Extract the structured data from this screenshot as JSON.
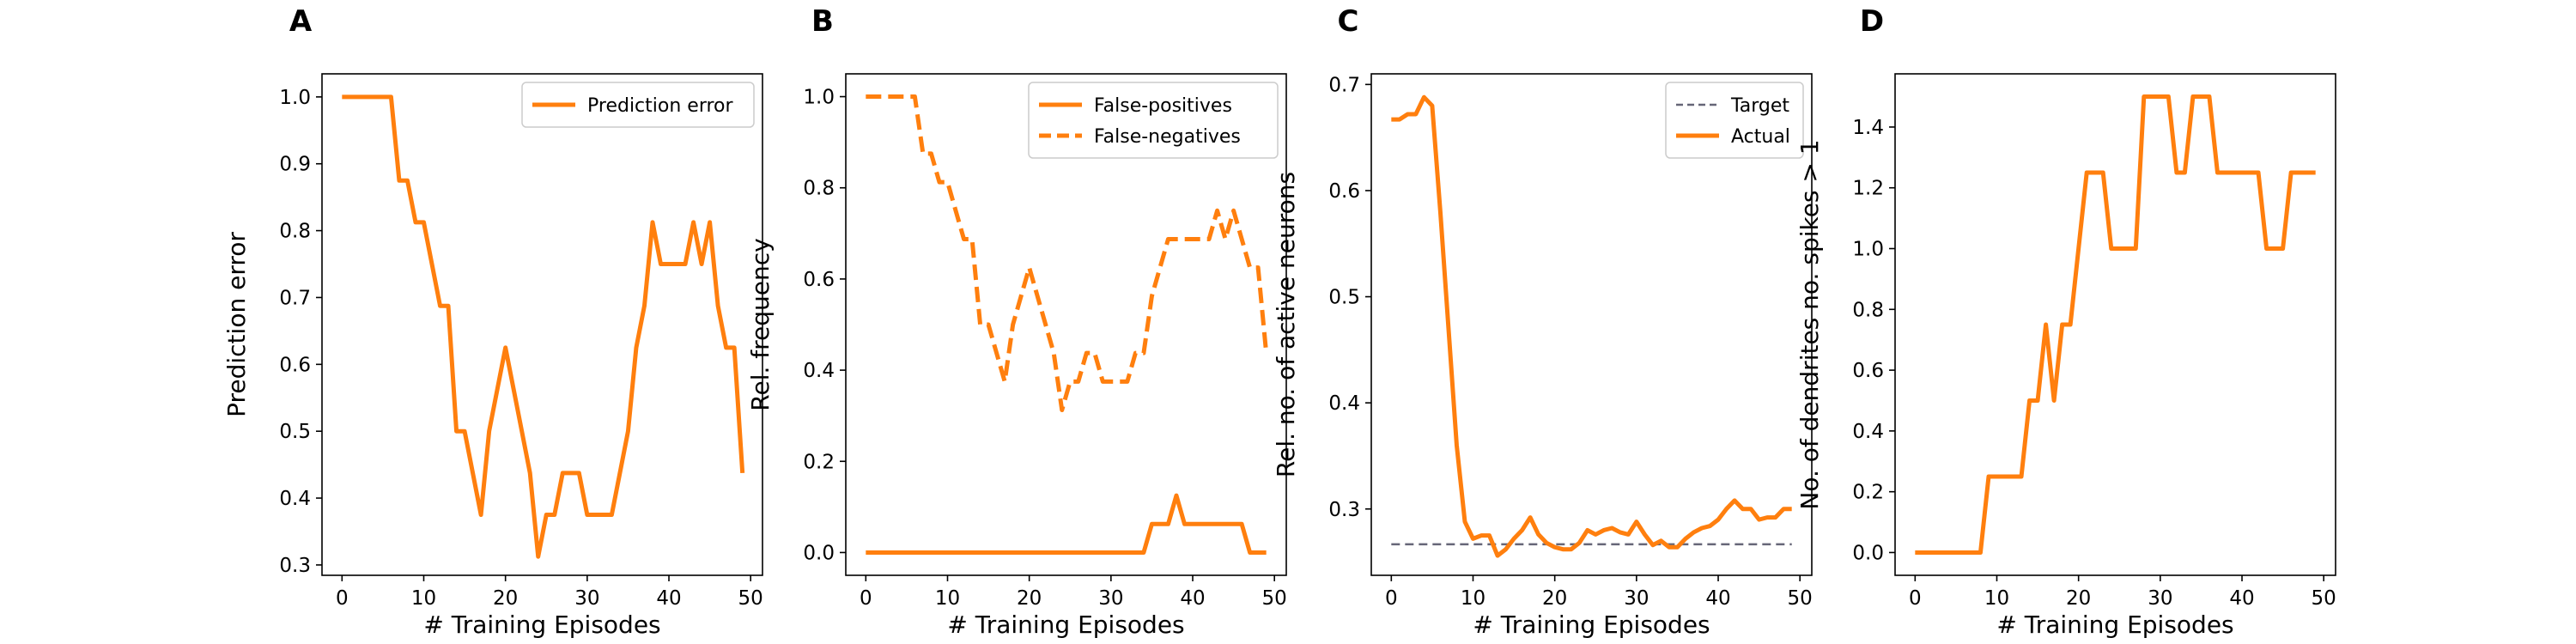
{
  "colors": {
    "orange": "#ff7f0e",
    "gray": "#666677"
  },
  "chart_data": [
    {
      "panel_letter": "A",
      "type": "line",
      "xlabel": "# Training Episodes",
      "ylabel": "Prediction error",
      "xlim": [
        -2.45,
        51.45
      ],
      "ylim": [
        0.2845,
        1.0345
      ],
      "xticks": [
        0,
        10,
        20,
        30,
        40,
        50
      ],
      "xtick_labels": [
        "0",
        "10",
        "20",
        "30",
        "40",
        "50"
      ],
      "yticks": [
        0.3,
        0.4,
        0.5,
        0.6,
        0.7,
        0.8,
        0.9,
        1.0
      ],
      "ytick_labels": [
        "0.3",
        "0.4",
        "0.5",
        "0.6",
        "0.7",
        "0.8",
        "0.9",
        "1.0"
      ],
      "legend_position": "upper-right",
      "grid": false,
      "series": [
        {
          "name": "Prediction error",
          "style": "solid",
          "color": "#ff7f0e",
          "x": [
            0,
            1,
            2,
            3,
            4,
            5,
            6,
            7,
            8,
            9,
            10,
            11,
            12,
            13,
            14,
            15,
            16,
            17,
            18,
            19,
            20,
            21,
            22,
            23,
            24,
            25,
            26,
            27,
            28,
            29,
            30,
            31,
            32,
            33,
            34,
            35,
            36,
            37,
            38,
            39,
            40,
            41,
            42,
            43,
            44,
            45,
            46,
            47,
            48,
            49
          ],
          "y": [
            1.0,
            1.0,
            1.0,
            1.0,
            1.0,
            1.0,
            1.0,
            0.875,
            0.875,
            0.8125,
            0.8125,
            0.75,
            0.6875,
            0.6875,
            0.5,
            0.5,
            0.4375,
            0.375,
            0.5,
            0.5625,
            0.625,
            0.5625,
            0.5,
            0.4375,
            0.3125,
            0.375,
            0.375,
            0.4375,
            0.4375,
            0.4375,
            0.375,
            0.375,
            0.375,
            0.375,
            0.4375,
            0.5,
            0.625,
            0.6875,
            0.8125,
            0.75,
            0.75,
            0.75,
            0.75,
            0.8125,
            0.75,
            0.8125,
            0.6875,
            0.625,
            0.625,
            0.4375
          ]
        }
      ]
    },
    {
      "panel_letter": "B",
      "type": "line",
      "xlabel": "# Training Episodes",
      "ylabel": "Rel. frequency",
      "xlim": [
        -2.45,
        51.45
      ],
      "ylim": [
        -0.05,
        1.05
      ],
      "xticks": [
        0,
        10,
        20,
        30,
        40,
        50
      ],
      "xtick_labels": [
        "0",
        "10",
        "20",
        "30",
        "40",
        "50"
      ],
      "yticks": [
        0.0,
        0.2,
        0.4,
        0.6,
        0.8,
        1.0
      ],
      "ytick_labels": [
        "0.0",
        "0.2",
        "0.4",
        "0.6",
        "0.8",
        "1.0"
      ],
      "legend_position": "upper-right",
      "grid": false,
      "series": [
        {
          "name": "False-positives",
          "style": "solid",
          "color": "#ff7f0e",
          "x": [
            0,
            1,
            2,
            3,
            4,
            5,
            6,
            7,
            8,
            9,
            10,
            11,
            12,
            13,
            14,
            15,
            16,
            17,
            18,
            19,
            20,
            21,
            22,
            23,
            24,
            25,
            26,
            27,
            28,
            29,
            30,
            31,
            32,
            33,
            34,
            35,
            36,
            37,
            38,
            39,
            40,
            41,
            42,
            43,
            44,
            45,
            46,
            47,
            48,
            49
          ],
          "y": [
            0,
            0,
            0,
            0,
            0,
            0,
            0,
            0,
            0,
            0,
            0,
            0,
            0,
            0,
            0,
            0,
            0,
            0,
            0,
            0,
            0,
            0,
            0,
            0,
            0,
            0,
            0,
            0,
            0,
            0,
            0,
            0,
            0,
            0,
            0,
            0.0625,
            0.0625,
            0.0625,
            0.125,
            0.0625,
            0.0625,
            0.0625,
            0.0625,
            0.0625,
            0.0625,
            0.0625,
            0.0625,
            0,
            0,
            0
          ]
        },
        {
          "name": "False-negatives",
          "style": "dashed",
          "color": "#ff7f0e",
          "x": [
            0,
            1,
            2,
            3,
            4,
            5,
            6,
            7,
            8,
            9,
            10,
            11,
            12,
            13,
            14,
            15,
            16,
            17,
            18,
            19,
            20,
            21,
            22,
            23,
            24,
            25,
            26,
            27,
            28,
            29,
            30,
            31,
            32,
            33,
            34,
            35,
            36,
            37,
            38,
            39,
            40,
            41,
            42,
            43,
            44,
            45,
            46,
            47,
            48,
            49
          ],
          "y": [
            1.0,
            1.0,
            1.0,
            1.0,
            1.0,
            1.0,
            1.0,
            0.875,
            0.875,
            0.8125,
            0.8125,
            0.75,
            0.6875,
            0.6875,
            0.5,
            0.5,
            0.4375,
            0.375,
            0.5,
            0.5625,
            0.625,
            0.5625,
            0.5,
            0.4375,
            0.3125,
            0.375,
            0.375,
            0.4375,
            0.4375,
            0.375,
            0.375,
            0.375,
            0.375,
            0.4375,
            0.4375,
            0.5625,
            0.625,
            0.6875,
            0.6875,
            0.6875,
            0.6875,
            0.6875,
            0.6875,
            0.75,
            0.6875,
            0.75,
            0.6875,
            0.625,
            0.625,
            0.4375
          ]
        }
      ]
    },
    {
      "panel_letter": "C",
      "type": "line",
      "xlabel": "# Training Episodes",
      "ylabel": "Rel. no. of active neurons",
      "xlim": [
        -2.45,
        51.45
      ],
      "ylim": [
        0.2375,
        0.71
      ],
      "xticks": [
        0,
        10,
        20,
        30,
        40,
        50
      ],
      "xtick_labels": [
        "0",
        "10",
        "20",
        "30",
        "40",
        "50"
      ],
      "yticks": [
        0.3,
        0.4,
        0.5,
        0.6,
        0.7
      ],
      "ytick_labels": [
        "0.3",
        "0.4",
        "0.5",
        "0.6",
        "0.7"
      ],
      "legend_position": "upper-right",
      "grid": false,
      "series": [
        {
          "name": "Target",
          "style": "dashed-thin",
          "color": "#666677",
          "x": [
            0,
            49
          ],
          "y": [
            0.2667,
            0.2667
          ]
        },
        {
          "name": "Actual",
          "style": "solid",
          "color": "#ff7f0e",
          "x": [
            0,
            1,
            2,
            3,
            4,
            5,
            6,
            7,
            8,
            9,
            10,
            11,
            12,
            13,
            14,
            15,
            16,
            17,
            18,
            19,
            20,
            21,
            22,
            23,
            24,
            25,
            26,
            27,
            28,
            29,
            30,
            31,
            32,
            33,
            34,
            35,
            36,
            37,
            38,
            39,
            40,
            41,
            42,
            43,
            44,
            45,
            46,
            47,
            48,
            49
          ],
          "y": [
            0.667,
            0.667,
            0.672,
            0.672,
            0.688,
            0.68,
            0.58,
            0.47,
            0.36,
            0.288,
            0.272,
            0.275,
            0.275,
            0.256,
            0.262,
            0.272,
            0.28,
            0.292,
            0.276,
            0.268,
            0.264,
            0.262,
            0.262,
            0.268,
            0.28,
            0.276,
            0.28,
            0.282,
            0.278,
            0.276,
            0.288,
            0.276,
            0.266,
            0.27,
            0.264,
            0.264,
            0.272,
            0.278,
            0.282,
            0.284,
            0.29,
            0.3,
            0.308,
            0.3,
            0.3,
            0.29,
            0.292,
            0.292,
            0.3,
            0.3
          ]
        }
      ]
    },
    {
      "panel_letter": "D",
      "type": "line",
      "xlabel": "# Training Episodes",
      "ylabel": "No. of dendrites no. spikes > 1",
      "xlim": [
        -2.45,
        51.45
      ],
      "ylim": [
        -0.075,
        1.575
      ],
      "xticks": [
        0,
        10,
        20,
        30,
        40,
        50
      ],
      "xtick_labels": [
        "0",
        "10",
        "20",
        "30",
        "40",
        "50"
      ],
      "yticks": [
        0.0,
        0.2,
        0.4,
        0.6,
        0.8,
        1.0,
        1.2,
        1.4
      ],
      "ytick_labels": [
        "0.0",
        "0.2",
        "0.4",
        "0.6",
        "0.8",
        "1.0",
        "1.2",
        "1.4"
      ],
      "legend_position": "none",
      "grid": false,
      "series": [
        {
          "name": "",
          "style": "solid",
          "color": "#ff7f0e",
          "x": [
            0,
            1,
            2,
            3,
            4,
            5,
            6,
            7,
            8,
            9,
            10,
            11,
            12,
            13,
            14,
            15,
            16,
            17,
            18,
            19,
            20,
            21,
            22,
            23,
            24,
            25,
            26,
            27,
            28,
            29,
            30,
            31,
            32,
            33,
            34,
            35,
            36,
            37,
            38,
            39,
            40,
            41,
            42,
            43,
            44,
            45,
            46,
            47,
            48,
            49
          ],
          "y": [
            0,
            0,
            0,
            0,
            0,
            0,
            0,
            0,
            0,
            0.25,
            0.25,
            0.25,
            0.25,
            0.25,
            0.5,
            0.5,
            0.75,
            0.5,
            0.75,
            0.75,
            1.0,
            1.25,
            1.25,
            1.25,
            1.0,
            1.0,
            1.0,
            1.0,
            1.5,
            1.5,
            1.5,
            1.5,
            1.25,
            1.25,
            1.5,
            1.5,
            1.5,
            1.25,
            1.25,
            1.25,
            1.25,
            1.25,
            1.25,
            1.0,
            1.0,
            1.0,
            1.25,
            1.25,
            1.25,
            1.25
          ]
        }
      ]
    }
  ]
}
